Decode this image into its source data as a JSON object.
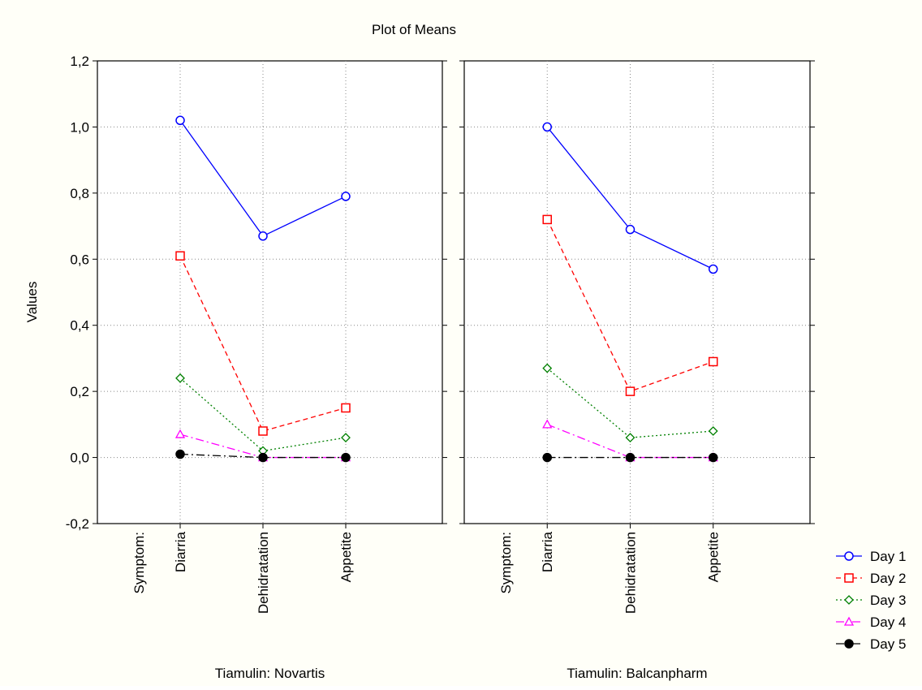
{
  "chart_data": {
    "type": "line",
    "title": "Plot of Means",
    "ylabel": "Values",
    "ylim": [
      -0.2,
      1.2
    ],
    "yticks": [
      "-0,2",
      "0,0",
      "0,2",
      "0,4",
      "0,6",
      "0,8",
      "1,0",
      "1,2"
    ],
    "factor_label": "Symptom:",
    "categories": [
      "Diarria",
      "Dehidratation",
      "Appetite"
    ],
    "grid": true,
    "legend_position": "bottom-right",
    "panels": [
      {
        "title": "Tiamulin: Novartis",
        "series": [
          {
            "name": "Day 1",
            "values": [
              1.02,
              0.67,
              0.79
            ]
          },
          {
            "name": "Day 2",
            "values": [
              0.61,
              0.08,
              0.15
            ]
          },
          {
            "name": "Day 3",
            "values": [
              0.24,
              0.02,
              0.06
            ]
          },
          {
            "name": "Day 4",
            "values": [
              0.07,
              0.0,
              0.0
            ]
          },
          {
            "name": "Day 5",
            "values": [
              0.01,
              0.0,
              0.0
            ]
          }
        ]
      },
      {
        "title": "Tiamulin: Balcanpharm",
        "series": [
          {
            "name": "Day 1",
            "values": [
              1.0,
              0.69,
              0.57
            ]
          },
          {
            "name": "Day 2",
            "values": [
              0.72,
              0.2,
              0.29
            ]
          },
          {
            "name": "Day 3",
            "values": [
              0.27,
              0.06,
              0.08
            ]
          },
          {
            "name": "Day 4",
            "values": [
              0.1,
              0.0,
              0.0
            ]
          },
          {
            "name": "Day 5",
            "values": [
              0.0,
              0.0,
              0.0
            ]
          }
        ]
      }
    ],
    "series_styles": [
      {
        "name": "Day 1",
        "color": "#0000ff",
        "dash": "solid",
        "marker": "circle"
      },
      {
        "name": "Day 2",
        "color": "#ff0000",
        "dash": "dashed",
        "marker": "square"
      },
      {
        "name": "Day 3",
        "color": "#008000",
        "dash": "dotted",
        "marker": "diamond"
      },
      {
        "name": "Day 4",
        "color": "#ff00ff",
        "dash": "dashdot",
        "marker": "triangle"
      },
      {
        "name": "Day 5",
        "color": "#000000",
        "dash": "dashdot",
        "marker": "filled-circle"
      }
    ]
  }
}
